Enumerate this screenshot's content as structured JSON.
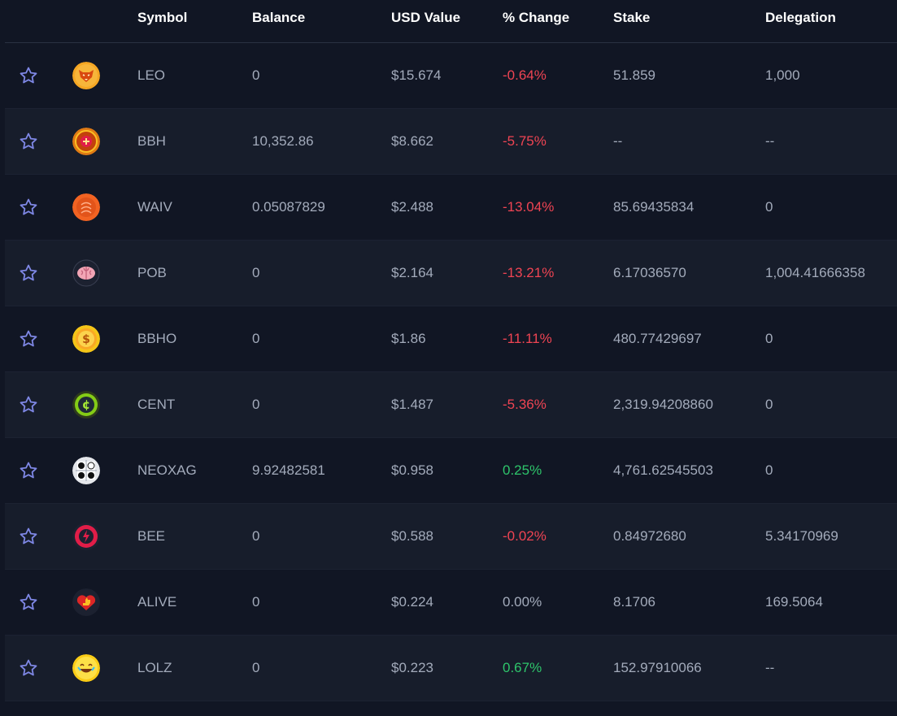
{
  "header": {
    "symbol": "Symbol",
    "balance": "Balance",
    "usd_value": "USD Value",
    "change": "% Change",
    "stake": "Stake",
    "delegation": "Delegation"
  },
  "rows": [
    {
      "symbol": "LEO",
      "icon": "leo-token-icon",
      "balance": "0",
      "usd": "$15.674",
      "change": "-0.64%",
      "trend": "neg",
      "stake": "51.859",
      "delegation": "1,000"
    },
    {
      "symbol": "BBH",
      "icon": "bbh-token-icon",
      "balance": "10,352.86",
      "usd": "$8.662",
      "change": "-5.75%",
      "trend": "neg",
      "stake": "--",
      "delegation": "--"
    },
    {
      "symbol": "WAIV",
      "icon": "waiv-token-icon",
      "balance": "0.05087829",
      "usd": "$2.488",
      "change": "-13.04%",
      "trend": "neg",
      "stake": "85.69435834",
      "delegation": "0"
    },
    {
      "symbol": "POB",
      "icon": "pob-token-icon",
      "balance": "0",
      "usd": "$2.164",
      "change": "-13.21%",
      "trend": "neg",
      "stake": "6.17036570",
      "delegation": "1,004.41666358"
    },
    {
      "symbol": "BBHO",
      "icon": "bbho-token-icon",
      "balance": "0",
      "usd": "$1.86",
      "change": "-11.11%",
      "trend": "neg",
      "stake": "480.77429697",
      "delegation": "0"
    },
    {
      "symbol": "CENT",
      "icon": "cent-token-icon",
      "balance": "0",
      "usd": "$1.487",
      "change": "-5.36%",
      "trend": "neg",
      "stake": "2,319.94208860",
      "delegation": "0"
    },
    {
      "symbol": "NEOXAG",
      "icon": "neoxag-token-icon",
      "balance": "9.92482581",
      "usd": "$0.958",
      "change": "0.25%",
      "trend": "pos",
      "stake": "4,761.62545503",
      "delegation": "0"
    },
    {
      "symbol": "BEE",
      "icon": "bee-token-icon",
      "balance": "0",
      "usd": "$0.588",
      "change": "-0.02%",
      "trend": "neg",
      "stake": "0.84972680",
      "delegation": "5.34170969"
    },
    {
      "symbol": "ALIVE",
      "icon": "alive-token-icon",
      "balance": "0",
      "usd": "$0.224",
      "change": "0.00%",
      "trend": "neu",
      "stake": "8.1706",
      "delegation": "169.5064"
    },
    {
      "symbol": "LOLZ",
      "icon": "lolz-token-icon",
      "balance": "0",
      "usd": "$0.223",
      "change": "0.67%",
      "trend": "pos",
      "stake": "152.97910066",
      "delegation": "--"
    }
  ],
  "colors": {
    "background": "#111624",
    "row_alt": "#171d2b",
    "negative": "#ef4453",
    "positive": "#2ec56b",
    "star": "#7f88e6"
  }
}
